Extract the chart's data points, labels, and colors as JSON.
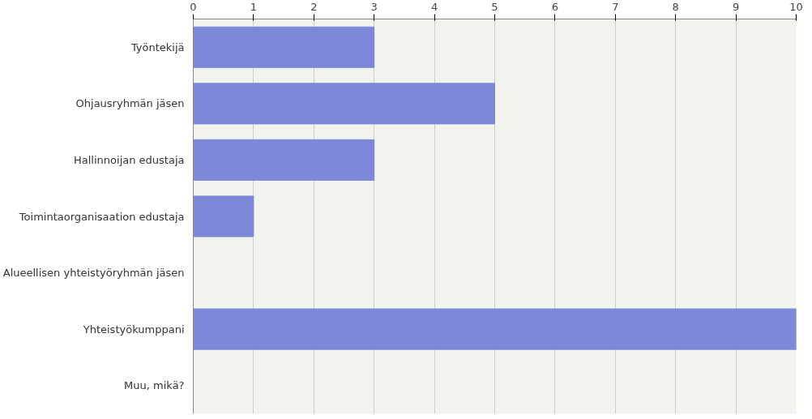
{
  "chart_data": {
    "type": "bar",
    "orientation": "horizontal",
    "categories": [
      "Työntekijä",
      "Ohjausryhmän jäsen",
      "Hallinnoijan edustaja",
      "Toimintaorganisaation edustaja",
      "Alueellisen yhteistyöryhmän jäsen",
      "Yhteistyökumppani",
      "Muu, mikä?"
    ],
    "values": [
      3,
      5,
      3,
      1,
      0,
      10,
      0
    ],
    "color": "#7d88d9",
    "xlim": [
      0,
      10
    ],
    "xticks": [
      0,
      1,
      2,
      3,
      4,
      5,
      6,
      7,
      8,
      9,
      10
    ],
    "grid": "x"
  }
}
